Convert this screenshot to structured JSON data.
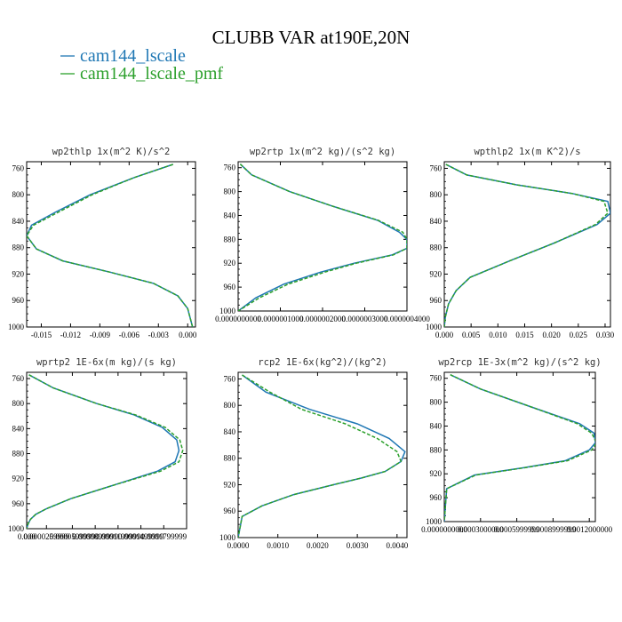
{
  "figure": {
    "title": "CLUBB VAR at190E,20N",
    "legend": [
      {
        "name": "cam144_lscale",
        "color": "#1f77b4",
        "dash": "solid"
      },
      {
        "name": "cam144_lscale_pmf",
        "color": "#2ca02c",
        "dash": "dashed"
      }
    ]
  },
  "chart_data": [
    {
      "type": "line",
      "title": "wp2thlp  1x(m^2 K)/s^2",
      "xlim": [
        -0.0165,
        0.0008
      ],
      "ylim": [
        1000,
        750
      ],
      "xticks": [
        "-0.015",
        "-0.012",
        "-0.009",
        "-0.006",
        "-0.003",
        "0.000"
      ],
      "xtick_values": [
        -0.015,
        -0.012,
        -0.009,
        -0.006,
        -0.003,
        0.0
      ],
      "yticks": [
        "760",
        "800",
        "840",
        "880",
        "920",
        "960",
        "1000"
      ],
      "series": [
        {
          "name": "cam144_lscale",
          "x": [
            -0.0015,
            -0.0055,
            -0.01,
            -0.0135,
            -0.016,
            -0.0165,
            -0.0155,
            -0.0128,
            -0.008,
            -0.0035,
            -0.001,
            0.0,
            0.0005
          ],
          "y": [
            754,
            774,
            800,
            826,
            846,
            862,
            882,
            900,
            917,
            934,
            953,
            972,
            1000
          ]
        },
        {
          "name": "cam144_lscale_pmf",
          "x": [
            -0.0015,
            -0.0055,
            -0.0098,
            -0.0132,
            -0.0158,
            -0.0165,
            -0.0155,
            -0.0128,
            -0.008,
            -0.0035,
            -0.001,
            0.0,
            0.0005
          ],
          "y": [
            754,
            774,
            800,
            826,
            846,
            862,
            882,
            900,
            917,
            934,
            953,
            972,
            1000
          ]
        }
      ]
    },
    {
      "type": "line",
      "title": "wp2rtp  1x(m^2 kg)/(s^2 kg)",
      "xlim": [
        0.0,
        4e-07
      ],
      "ylim": [
        1000,
        750
      ],
      "xticks": [
        "0.0000000000",
        "0.0000001000",
        "0.0000002000",
        "0.0000003000",
        "0.0000004000"
      ],
      "xtick_values": [
        0.0,
        1e-07,
        2e-07,
        3e-07,
        4e-07
      ],
      "yticks": [
        "760",
        "800",
        "840",
        "880",
        "920",
        "960",
        "1000"
      ],
      "series": [
        {
          "name": "cam144_lscale",
          "x": [
            5e-09,
            3.2e-08,
            1.22e-07,
            2.26e-07,
            3.3e-07,
            3.82e-07,
            4e-07,
            4e-07,
            3.65e-07,
            2.75e-07,
            1.95e-07,
            1.08e-07,
            4.2e-08,
            0.0
          ],
          "y": [
            754,
            772,
            800,
            825,
            848,
            868,
            880,
            895,
            906,
            920,
            935,
            955,
            978,
            1000
          ]
        },
        {
          "name": "cam144_lscale_pmf",
          "x": [
            5e-09,
            3.2e-08,
            1.22e-07,
            2.26e-07,
            3.32e-07,
            3.9e-07,
            4e-07,
            4e-07,
            3.68e-07,
            2.8e-07,
            2.05e-07,
            1.18e-07,
            5e-08,
            0.0
          ],
          "y": [
            754,
            772,
            800,
            825,
            848,
            868,
            880,
            895,
            906,
            920,
            935,
            955,
            978,
            1000
          ]
        }
      ]
    },
    {
      "type": "line",
      "title": "wpthlp2  1x(m K^2)/s",
      "xlim": [
        0.0,
        0.031
      ],
      "ylim": [
        1000,
        750
      ],
      "xticks": [
        "0.000",
        "0.005",
        "0.010",
        "0.015",
        "0.020",
        "0.025",
        "0.030"
      ],
      "xtick_values": [
        0.0,
        0.005,
        0.01,
        0.015,
        0.02,
        0.025,
        0.03
      ],
      "yticks": [
        "760",
        "800",
        "840",
        "880",
        "920",
        "960",
        "1000"
      ],
      "series": [
        {
          "name": "cam144_lscale",
          "x": [
            0.0003,
            0.0042,
            0.0135,
            0.0238,
            0.0305,
            0.031,
            0.0285,
            0.0205,
            0.0122,
            0.0048,
            0.0022,
            0.0008,
            0.0002,
            0.0
          ],
          "y": [
            754,
            770,
            785,
            798,
            810,
            828,
            845,
            873,
            900,
            925,
            945,
            965,
            985,
            1000
          ]
        },
        {
          "name": "cam144_lscale_pmf",
          "x": [
            0.0003,
            0.0042,
            0.0135,
            0.0238,
            0.0298,
            0.0305,
            0.0282,
            0.0205,
            0.0122,
            0.0048,
            0.0022,
            0.0008,
            0.0002,
            0.0
          ],
          "y": [
            754,
            770,
            785,
            798,
            810,
            828,
            845,
            873,
            900,
            925,
            945,
            965,
            985,
            1000
          ]
        }
      ]
    },
    {
      "type": "line",
      "title": "wprtp2  1E-6x(m kg)/(s kg)",
      "xlim": [
        0.0,
        0.00021
      ],
      "ylim": [
        1000,
        750
      ],
      "xticks": [
        "0.000",
        "0.0000259999",
        "0.0000599999",
        "0.0000899999",
        "0.0001199999",
        "0.0001499999",
        "0.0001799999"
      ],
      "xtick_values": [
        0.0,
        2.6e-05,
        6e-05,
        9e-05,
        0.00012,
        0.00015,
        0.00018
      ],
      "yticks": [
        "760",
        "800",
        "840",
        "880",
        "920",
        "960",
        "1000"
      ],
      "series": [
        {
          "name": "cam144_lscale",
          "x": [
            3e-06,
            3.5e-05,
            9.2e-05,
            0.000141,
            0.000178,
            0.000197,
            0.0002,
            0.000195,
            0.000172,
            0.00011,
            5.8e-05,
            2.6e-05,
            1.2e-05,
            5e-06,
            2e-06,
            0.0
          ],
          "y": [
            754,
            775,
            800,
            818,
            838,
            858,
            875,
            893,
            908,
            932,
            952,
            968,
            977,
            985,
            992,
            1000
          ]
        },
        {
          "name": "cam144_lscale_pmf",
          "x": [
            3e-06,
            3.5e-05,
            9.2e-05,
            0.000143,
            0.000182,
            0.000201,
            0.000205,
            0.0002,
            0.000176,
            0.00011,
            5.8e-05,
            2.6e-05,
            1.2e-05,
            5e-06,
            2e-06,
            0.0
          ],
          "y": [
            754,
            775,
            800,
            818,
            838,
            858,
            875,
            893,
            908,
            932,
            952,
            968,
            977,
            985,
            992,
            1000
          ]
        }
      ]
    },
    {
      "type": "line",
      "title": "rcp2  1E-6x(kg^2)/(kg^2)",
      "xlim": [
        0.0,
        0.00425
      ],
      "ylim": [
        1000,
        750
      ],
      "xticks": [
        "0.0000",
        "0.0010",
        "0.0020",
        "0.0030",
        "0.0040"
      ],
      "xtick_values": [
        0.0,
        0.001,
        0.002,
        0.003,
        0.004
      ],
      "yticks": [
        "760",
        "800",
        "840",
        "880",
        "920",
        "960",
        "1000"
      ],
      "series": [
        {
          "name": "cam144_lscale",
          "x": [
            0.0001,
            0.0007,
            0.0018,
            0.003,
            0.0038,
            0.0042,
            0.0041,
            0.0037,
            0.0031,
            0.0024,
            0.0014,
            0.0006,
            0.0001,
            0.0
          ],
          "y": [
            754,
            780,
            806,
            828,
            850,
            870,
            885,
            900,
            910,
            920,
            935,
            952,
            968,
            1000
          ]
        },
        {
          "name": "cam144_lscale_pmf",
          "x": [
            0.0001,
            0.0008,
            0.0016,
            0.0027,
            0.0035,
            0.004,
            0.0041,
            0.0037,
            0.0031,
            0.0024,
            0.0014,
            0.0006,
            0.0001,
            0.0
          ],
          "y": [
            754,
            780,
            806,
            828,
            850,
            870,
            885,
            900,
            910,
            920,
            935,
            952,
            968,
            1000
          ]
        }
      ]
    },
    {
      "type": "line",
      "title": "wp2rcp  1E-3x(m^2 kg)/(s^2 kg)",
      "xlim": [
        0.0,
        0.00125
      ],
      "ylim": [
        1000,
        750
      ],
      "xticks": [
        "0.0000000000",
        "0.0003000000",
        "0.0005999999",
        "0.0008999999",
        "0.0012000000"
      ],
      "xtick_values": [
        0.0,
        0.0003,
        0.0006,
        0.0009,
        0.0012
      ],
      "yticks": [
        "760",
        "800",
        "840",
        "880",
        "920",
        "960",
        "1000"
      ],
      "series": [
        {
          "name": "cam144_lscale",
          "x": [
            5e-05,
            0.0003,
            0.00072,
            0.00112,
            0.00124,
            0.00125,
            0.0012,
            0.001,
            0.00065,
            0.00025,
            2e-05,
            0.0
          ],
          "y": [
            754,
            778,
            808,
            836,
            852,
            868,
            880,
            898,
            910,
            922,
            945,
            1000
          ]
        },
        {
          "name": "cam144_lscale_pmf",
          "x": [
            5e-05,
            0.0003,
            0.00072,
            0.0011,
            0.00122,
            0.00126,
            0.00122,
            0.00102,
            0.00066,
            0.00026,
            2e-05,
            0.0
          ],
          "y": [
            754,
            778,
            808,
            836,
            852,
            868,
            880,
            898,
            910,
            922,
            945,
            1000
          ]
        }
      ]
    }
  ]
}
